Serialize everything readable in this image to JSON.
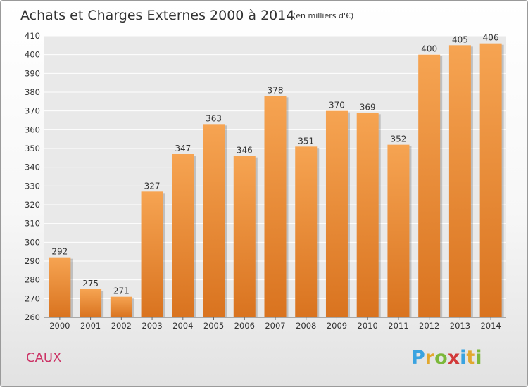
{
  "chart_data": {
    "type": "bar",
    "title": "Achats et Charges Externes 2000 à 2014",
    "unit_note": "(en milliers d'€)",
    "categories": [
      "2000",
      "2001",
      "2002",
      "2003",
      "2004",
      "2005",
      "2006",
      "2007",
      "2008",
      "2009",
      "2010",
      "2011",
      "2012",
      "2013",
      "2014"
    ],
    "values": [
      292,
      275,
      271,
      327,
      347,
      363,
      346,
      378,
      351,
      370,
      369,
      352,
      400,
      405,
      406
    ],
    "ylim": [
      260,
      410
    ],
    "yticks": [
      260,
      270,
      280,
      290,
      300,
      310,
      320,
      330,
      340,
      350,
      360,
      370,
      380,
      390,
      400,
      410
    ],
    "grid": true,
    "bar_color": "#f0933a",
    "grid_color": "#ffffff",
    "plot_background": "#e9e9e9"
  },
  "footer": {
    "commune": "CAUX",
    "logo": "Proxiti"
  },
  "colors": {
    "commune": "#cc3366",
    "logo_letters": [
      "#3aa3e0",
      "#e2a82e",
      "#7cb83a",
      "#d23a3a",
      "#3aa3e0",
      "#e2a82e",
      "#7cb83a"
    ]
  }
}
